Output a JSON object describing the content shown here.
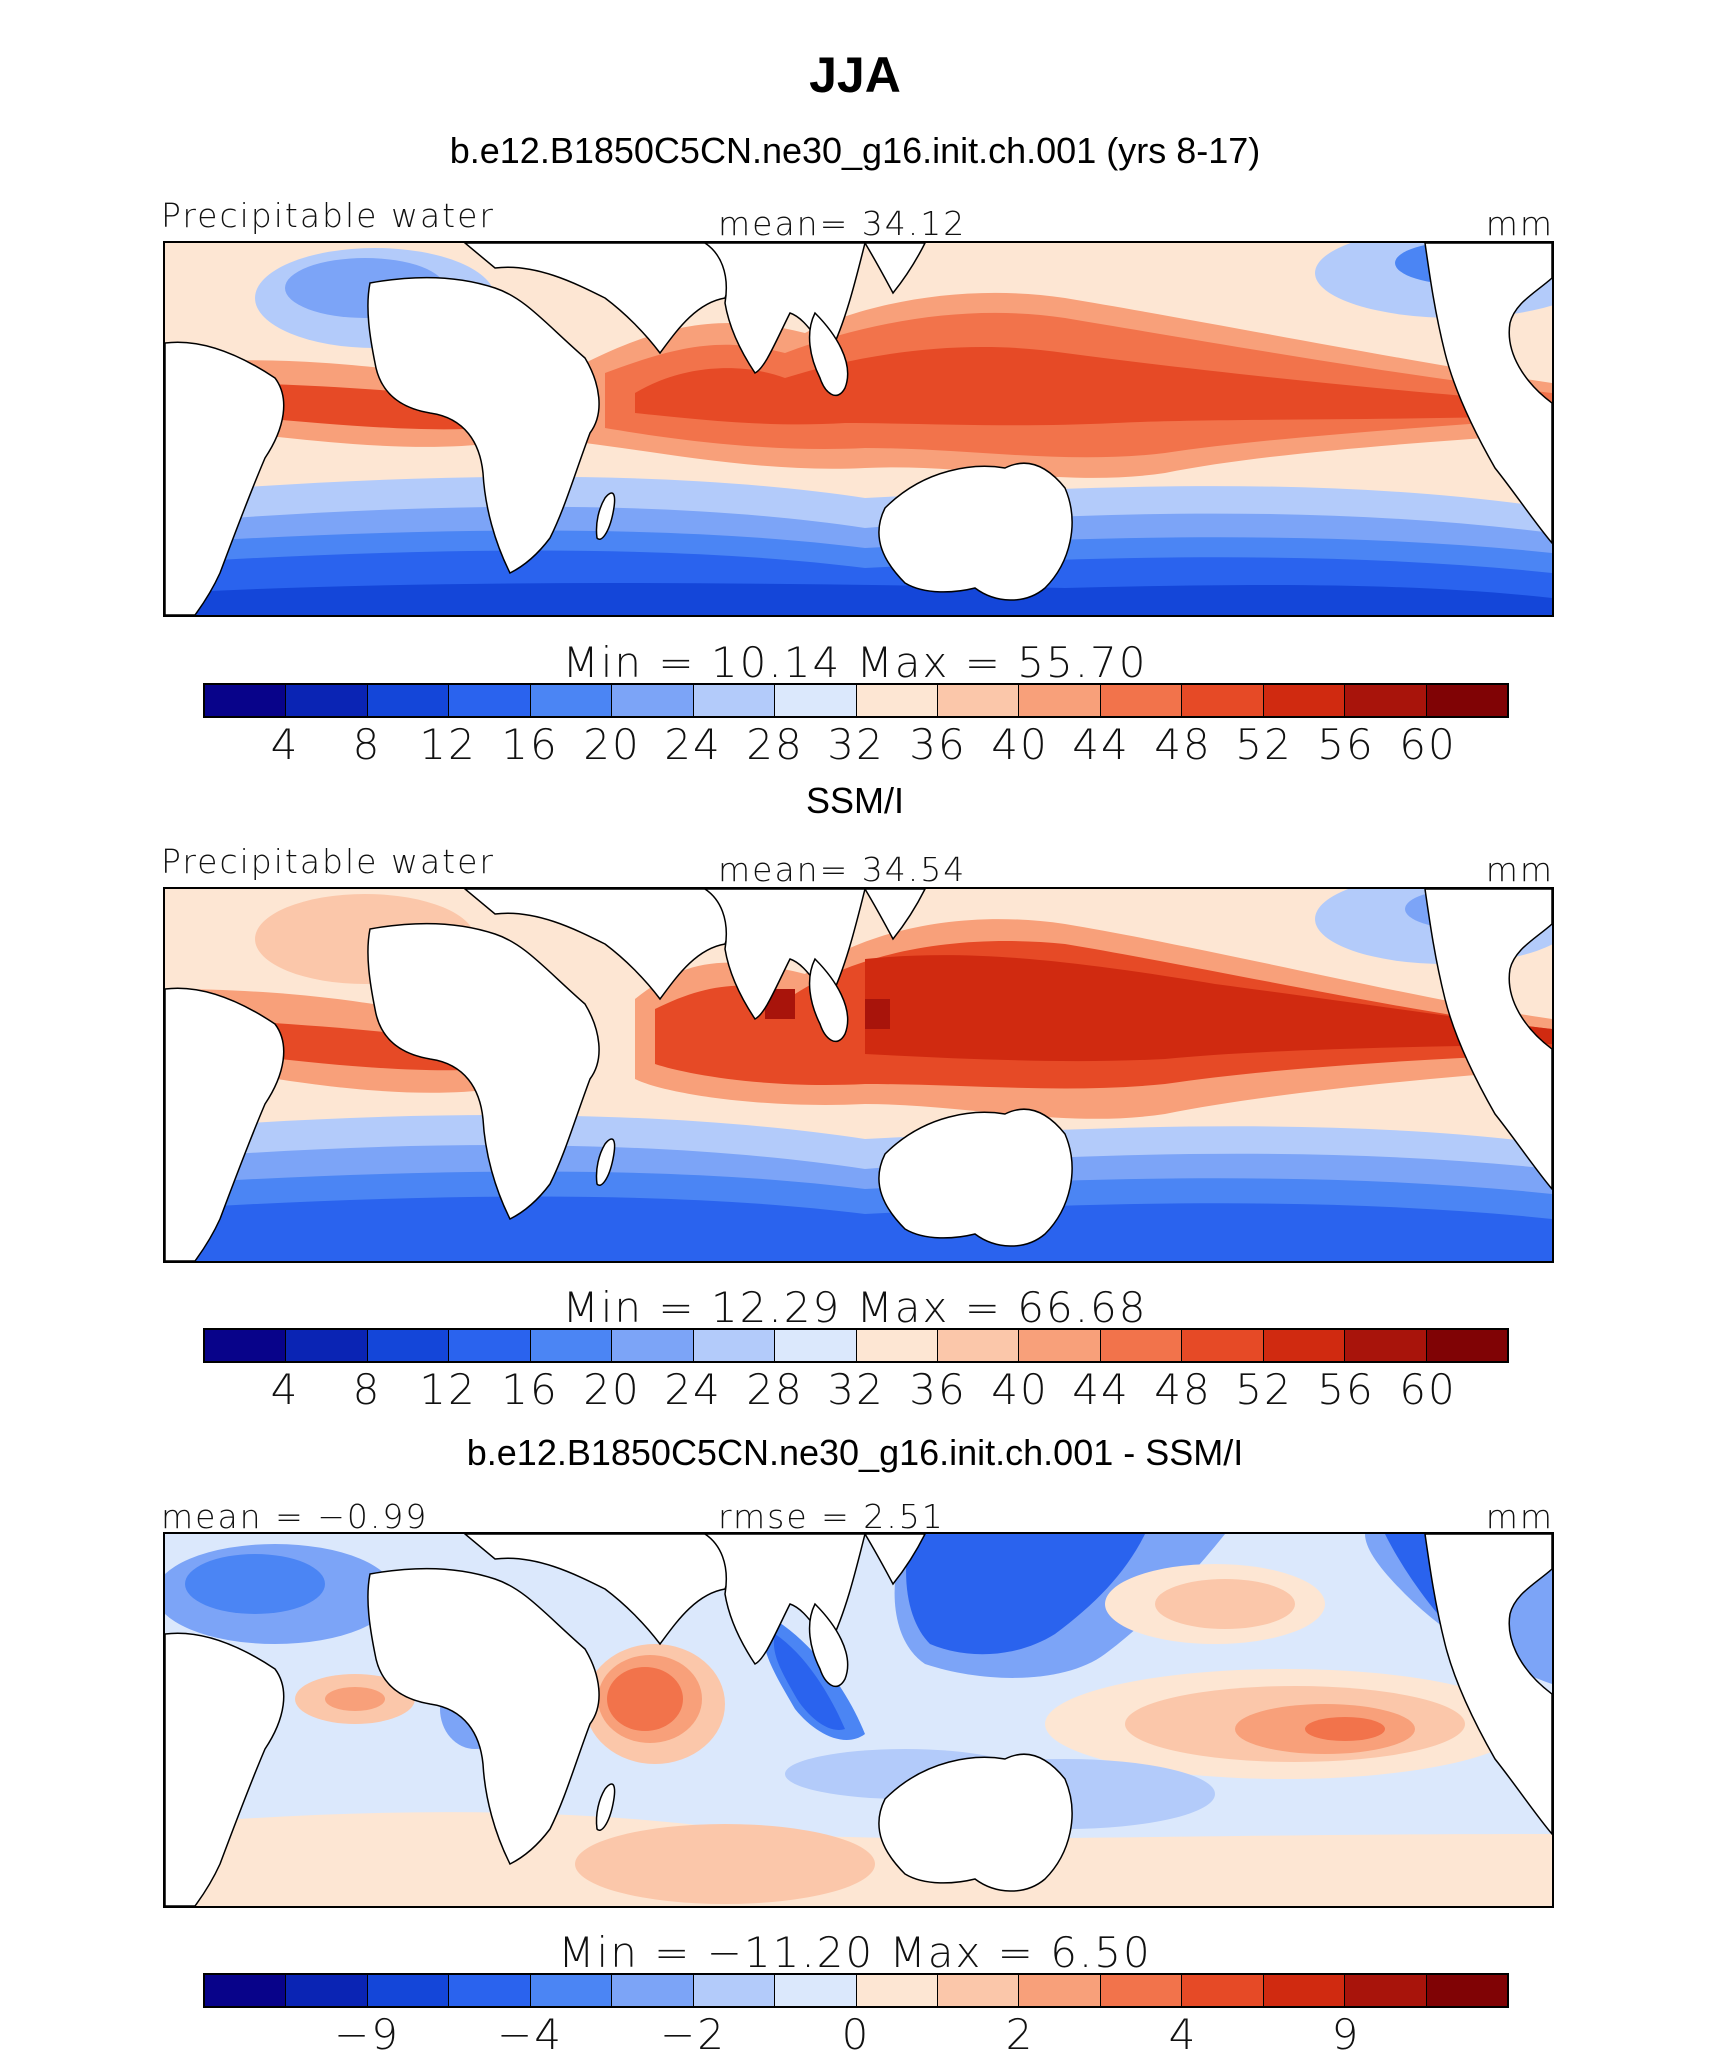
{
  "title": "JJA",
  "panels": [
    {
      "title": "b.e12.B1850C5CN.ne30_g16.init.ch.001 (yrs 8-17)",
      "left_label": "Precipitable water",
      "mid_label": "mean=  34.12",
      "right_label": "mm",
      "minmax": "Min  =   10.14  Max  =    55.70",
      "tick_labels": [
        "4",
        "8",
        "12",
        "16",
        "20",
        "24",
        "28",
        "32",
        "36",
        "40",
        "44",
        "48",
        "52",
        "56",
        "60"
      ]
    },
    {
      "title": "SSM/I",
      "left_label": "Precipitable water",
      "mid_label": "mean=  34.54",
      "right_label": "mm",
      "minmax": "Min  =   12.29  Max  =    66.68",
      "tick_labels": [
        "4",
        "8",
        "12",
        "16",
        "20",
        "24",
        "28",
        "32",
        "36",
        "40",
        "44",
        "48",
        "52",
        "56",
        "60"
      ]
    },
    {
      "title": "b.e12.B1850C5CN.ne30_g16.init.ch.001 - SSM/I",
      "left_label": "mean =  −0.99",
      "mid_label": "rmse =    2.51",
      "right_label": "mm",
      "minmax": "Min  = −11.20  Max  =    6.50",
      "tick_labels": [
        "−9",
        "−4",
        "−2",
        "0",
        "2",
        "4",
        "9"
      ]
    }
  ],
  "colors": [
    "#08038a",
    "#0a24b4",
    "#1446d9",
    "#2a63ee",
    "#4b85f4",
    "#7ca4f7",
    "#b3cbfa",
    "#dbe8fc",
    "#fde6d3",
    "#fbc7aa",
    "#f8a07a",
    "#f2734b",
    "#e64a26",
    "#d02a10",
    "#a8140b",
    "#800305"
  ],
  "chart_data": [
    {
      "type": "heatmap",
      "title": "b.e12.B1850C5CN.ne30_g16.init.ch.001 (yrs 8-17)",
      "variable": "Precipitable water",
      "units": "mm",
      "mean": 34.12,
      "min": 10.14,
      "max": 55.7,
      "contour_levels": [
        4,
        8,
        12,
        16,
        20,
        24,
        28,
        32,
        36,
        40,
        44,
        48,
        52,
        56,
        60
      ]
    },
    {
      "type": "heatmap",
      "title": "SSM/I",
      "variable": "Precipitable water",
      "units": "mm",
      "mean": 34.54,
      "min": 12.29,
      "max": 66.68,
      "contour_levels": [
        4,
        8,
        12,
        16,
        20,
        24,
        28,
        32,
        36,
        40,
        44,
        48,
        52,
        56,
        60
      ]
    },
    {
      "type": "heatmap",
      "title": "b.e12.B1850C5CN.ne30_g16.init.ch.001 - SSM/I",
      "units": "mm",
      "mean": -0.99,
      "rmse": 2.51,
      "min": -11.2,
      "max": 6.5,
      "contour_levels": [
        -9,
        -4,
        -2,
        0,
        2,
        4,
        9
      ]
    }
  ]
}
